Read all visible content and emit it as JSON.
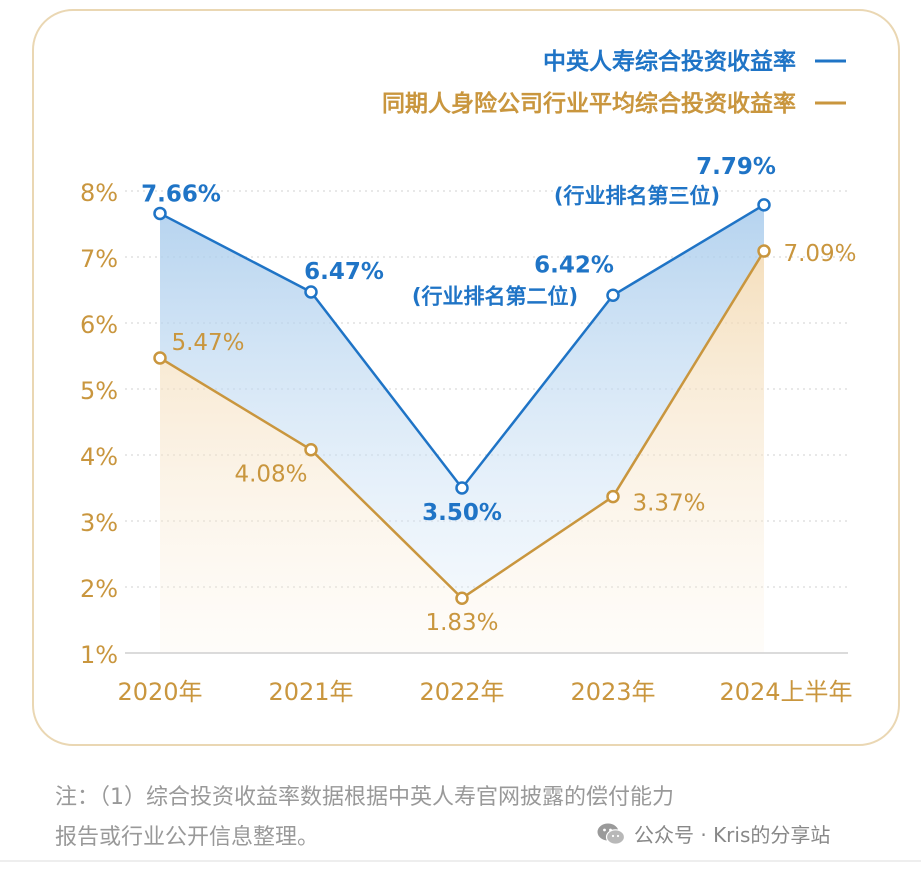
{
  "chart_data": {
    "type": "line",
    "categories": [
      "2020年",
      "2021年",
      "2022年",
      "2023年",
      "2024上半年"
    ],
    "ylim": [
      1,
      8
    ],
    "yticks": [
      "1%",
      "2%",
      "3%",
      "4%",
      "5%",
      "6%",
      "7%",
      "8%"
    ],
    "grid": true,
    "legend_position": "top-right",
    "series": [
      {
        "name": "中英人寿综合投资收益率",
        "color": "#1f74c6",
        "values": [
          7.66,
          6.47,
          3.5,
          6.42,
          7.79
        ],
        "labels": [
          "7.66%",
          "6.47%",
          "3.50%",
          "6.42%",
          "7.79%"
        ],
        "annotations": [
          "",
          "",
          "",
          "(行业排名第二位)",
          "(行业排名第三位)"
        ]
      },
      {
        "name": "同期人身险公司行业平均综合投资收益率",
        "color": "#c9963e",
        "values": [
          5.47,
          4.08,
          1.83,
          3.37,
          7.09
        ],
        "labels": [
          "5.47%",
          "4.08%",
          "1.83%",
          "3.37%",
          "7.09%"
        ],
        "annotations": [
          "",
          "",
          "",
          "",
          ""
        ]
      }
    ]
  },
  "note": {
    "line1": "注：（1）综合投资收益率数据根据中英人寿官网披露的偿付能力",
    "line2": "报告或行业公开信息整理。"
  },
  "watermark": {
    "text": "公众号 · Kris的分享站",
    "icon": "wechat-icon"
  }
}
